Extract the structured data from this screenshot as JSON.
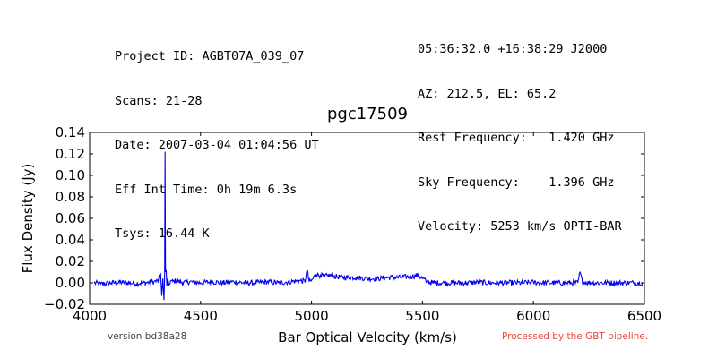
{
  "header": {
    "left": [
      "Project ID: AGBT07A_039_07",
      "Scans: 21-28",
      "Date: 2007-03-04 01:04:56 UT",
      "Eff Int Time: 0h 19m 6.3s",
      "Tsys: 16.44 K"
    ],
    "right": [
      "05:36:32.0 +16:38:29 J2000",
      "AZ: 212.5, EL: 65.2",
      "Rest Frequency:   1.420 GHz",
      "Sky Frequency:    1.396 GHz",
      "Velocity: 5253 km/s OPTI-BAR"
    ]
  },
  "footer": {
    "version": "version bd38a28",
    "pipeline": "Processed by the GBT pipeline."
  },
  "colors": {
    "line": "#0000ee",
    "pipeline_text": "#e8453c"
  },
  "chart_data": {
    "type": "line",
    "title": "pgc17509",
    "xlabel": "Bar Optical Velocity (km/s)",
    "ylabel": "Flux Density (Jy)",
    "xlim": [
      4000,
      6500
    ],
    "ylim": [
      -0.02,
      0.14
    ],
    "xticks": [
      4000,
      4500,
      5000,
      5500,
      6000,
      6500
    ],
    "yticks": [
      -0.02,
      0.0,
      0.02,
      0.04,
      0.06,
      0.08,
      0.1,
      0.12,
      0.14
    ],
    "ytick_labels": [
      "−0.02",
      "0.00",
      "0.02",
      "0.04",
      "0.06",
      "0.08",
      "0.10",
      "0.12",
      "0.14"
    ],
    "grid": false,
    "series": [
      {
        "x": [
          4020,
          4050,
          4100,
          4150,
          4200,
          4250,
          4290,
          4310,
          4320,
          4325,
          4330,
          4335,
          4338,
          4340,
          4342,
          4345,
          4348,
          4352,
          4358,
          4365,
          4375,
          4390,
          4420,
          4450,
          4500,
          4550,
          4600,
          4650,
          4700,
          4750,
          4800,
          4850,
          4900,
          4950,
          4970,
          4980,
          4990,
          5000,
          5020,
          5040,
          5060,
          5080,
          5100,
          5150,
          5200,
          5250,
          5300,
          5350,
          5400,
          5450,
          5480,
          5500,
          5520,
          5550,
          5600,
          5650,
          5700,
          5750,
          5800,
          5850,
          5900,
          5950,
          6000,
          6050,
          6100,
          6150,
          6200,
          6210,
          6220,
          6250,
          6300,
          6350,
          6400,
          6450,
          6490
        ],
        "y": [
          0.0,
          -0.001,
          0.0,
          0.0005,
          -0.0005,
          0.0,
          0.001,
          0.002,
          0.009,
          -0.012,
          0.004,
          -0.016,
          0.006,
          0.122,
          0.01,
          0.012,
          -0.003,
          0.004,
          -0.002,
          0.002,
          0.001,
          0.002,
          0.0,
          0.001,
          0.0,
          0.001,
          0.0,
          0.001,
          0.0,
          0.0,
          0.001,
          0.0,
          0.001,
          0.002,
          0.001,
          0.012,
          0.001,
          0.002,
          0.008,
          0.007,
          0.006,
          0.007,
          0.006,
          0.005,
          0.005,
          0.004,
          0.004,
          0.005,
          0.005,
          0.006,
          0.007,
          0.004,
          0.001,
          0.0,
          0.0,
          0.0,
          0.0,
          0.0005,
          0.0,
          0.0,
          0.0,
          0.0,
          0.0005,
          0.0,
          0.0,
          0.0,
          0.0,
          0.01,
          0.001,
          0.0,
          0.0,
          0.0,
          0.0,
          0.0,
          0.0
        ]
      }
    ]
  }
}
